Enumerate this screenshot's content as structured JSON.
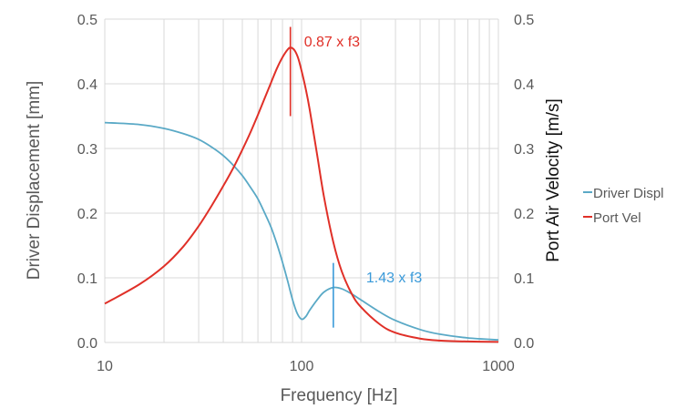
{
  "chart_data": {
    "type": "line",
    "xlabel": "Frequency  [Hz]",
    "ylabel": "Driver Displacement  [mm]",
    "y2label": "Port Air Velocity  [m/s]",
    "xscale": "log",
    "xlim": [
      10,
      1000
    ],
    "ylim": [
      0,
      0.5
    ],
    "y2lim": [
      0,
      0.5
    ],
    "grid": true,
    "legend_position": "right",
    "x_ticks": [
      "10",
      "100",
      "1000"
    ],
    "y_ticks": [
      "0.0",
      "0.1",
      "0.2",
      "0.3",
      "0.4",
      "0.5"
    ],
    "y2_ticks": [
      "0.0",
      "0.1",
      "0.2",
      "0.3",
      "0.4",
      "0.5"
    ],
    "series": [
      {
        "name": "Driver Displ",
        "axis": "left",
        "color": "#5aa9c6",
        "x": [
          10,
          15,
          20,
          25,
          30,
          35,
          40,
          45,
          50,
          55,
          60,
          65,
          70,
          75,
          80,
          85,
          90,
          95,
          100,
          105,
          110,
          120,
          130,
          145,
          160,
          180,
          200,
          250,
          300,
          400,
          500,
          700,
          1000
        ],
        "y": [
          0.34,
          0.337,
          0.331,
          0.323,
          0.314,
          0.302,
          0.289,
          0.274,
          0.258,
          0.24,
          0.222,
          0.2,
          0.178,
          0.152,
          0.124,
          0.095,
          0.066,
          0.045,
          0.036,
          0.04,
          0.05,
          0.066,
          0.078,
          0.085,
          0.083,
          0.075,
          0.066,
          0.047,
          0.034,
          0.02,
          0.013,
          0.007,
          0.004
        ]
      },
      {
        "name": "Port Vel",
        "axis": "right",
        "color": "#e03028",
        "x": [
          10,
          15,
          20,
          25,
          30,
          35,
          40,
          45,
          50,
          55,
          60,
          65,
          70,
          75,
          80,
          85,
          88,
          92,
          96,
          100,
          105,
          110,
          120,
          130,
          145,
          160,
          180,
          200,
          250,
          300,
          400,
          500,
          700,
          1000
        ],
        "y": [
          0.06,
          0.09,
          0.118,
          0.148,
          0.18,
          0.212,
          0.242,
          0.27,
          0.298,
          0.325,
          0.352,
          0.378,
          0.402,
          0.424,
          0.441,
          0.453,
          0.456,
          0.452,
          0.44,
          0.42,
          0.392,
          0.36,
          0.29,
          0.225,
          0.155,
          0.11,
          0.075,
          0.055,
          0.028,
          0.015,
          0.006,
          0.003,
          0.0015,
          0.0008
        ]
      }
    ],
    "annotations": [
      {
        "text": "0.87 x f3",
        "x": 87.7,
        "y_from": 0.35,
        "y_to": 0.488,
        "color": "#e03028"
      },
      {
        "text": "1.43 x f3",
        "x": 145,
        "y_from": 0.023,
        "y_to": 0.123,
        "color": "#3a9ad9"
      }
    ]
  }
}
